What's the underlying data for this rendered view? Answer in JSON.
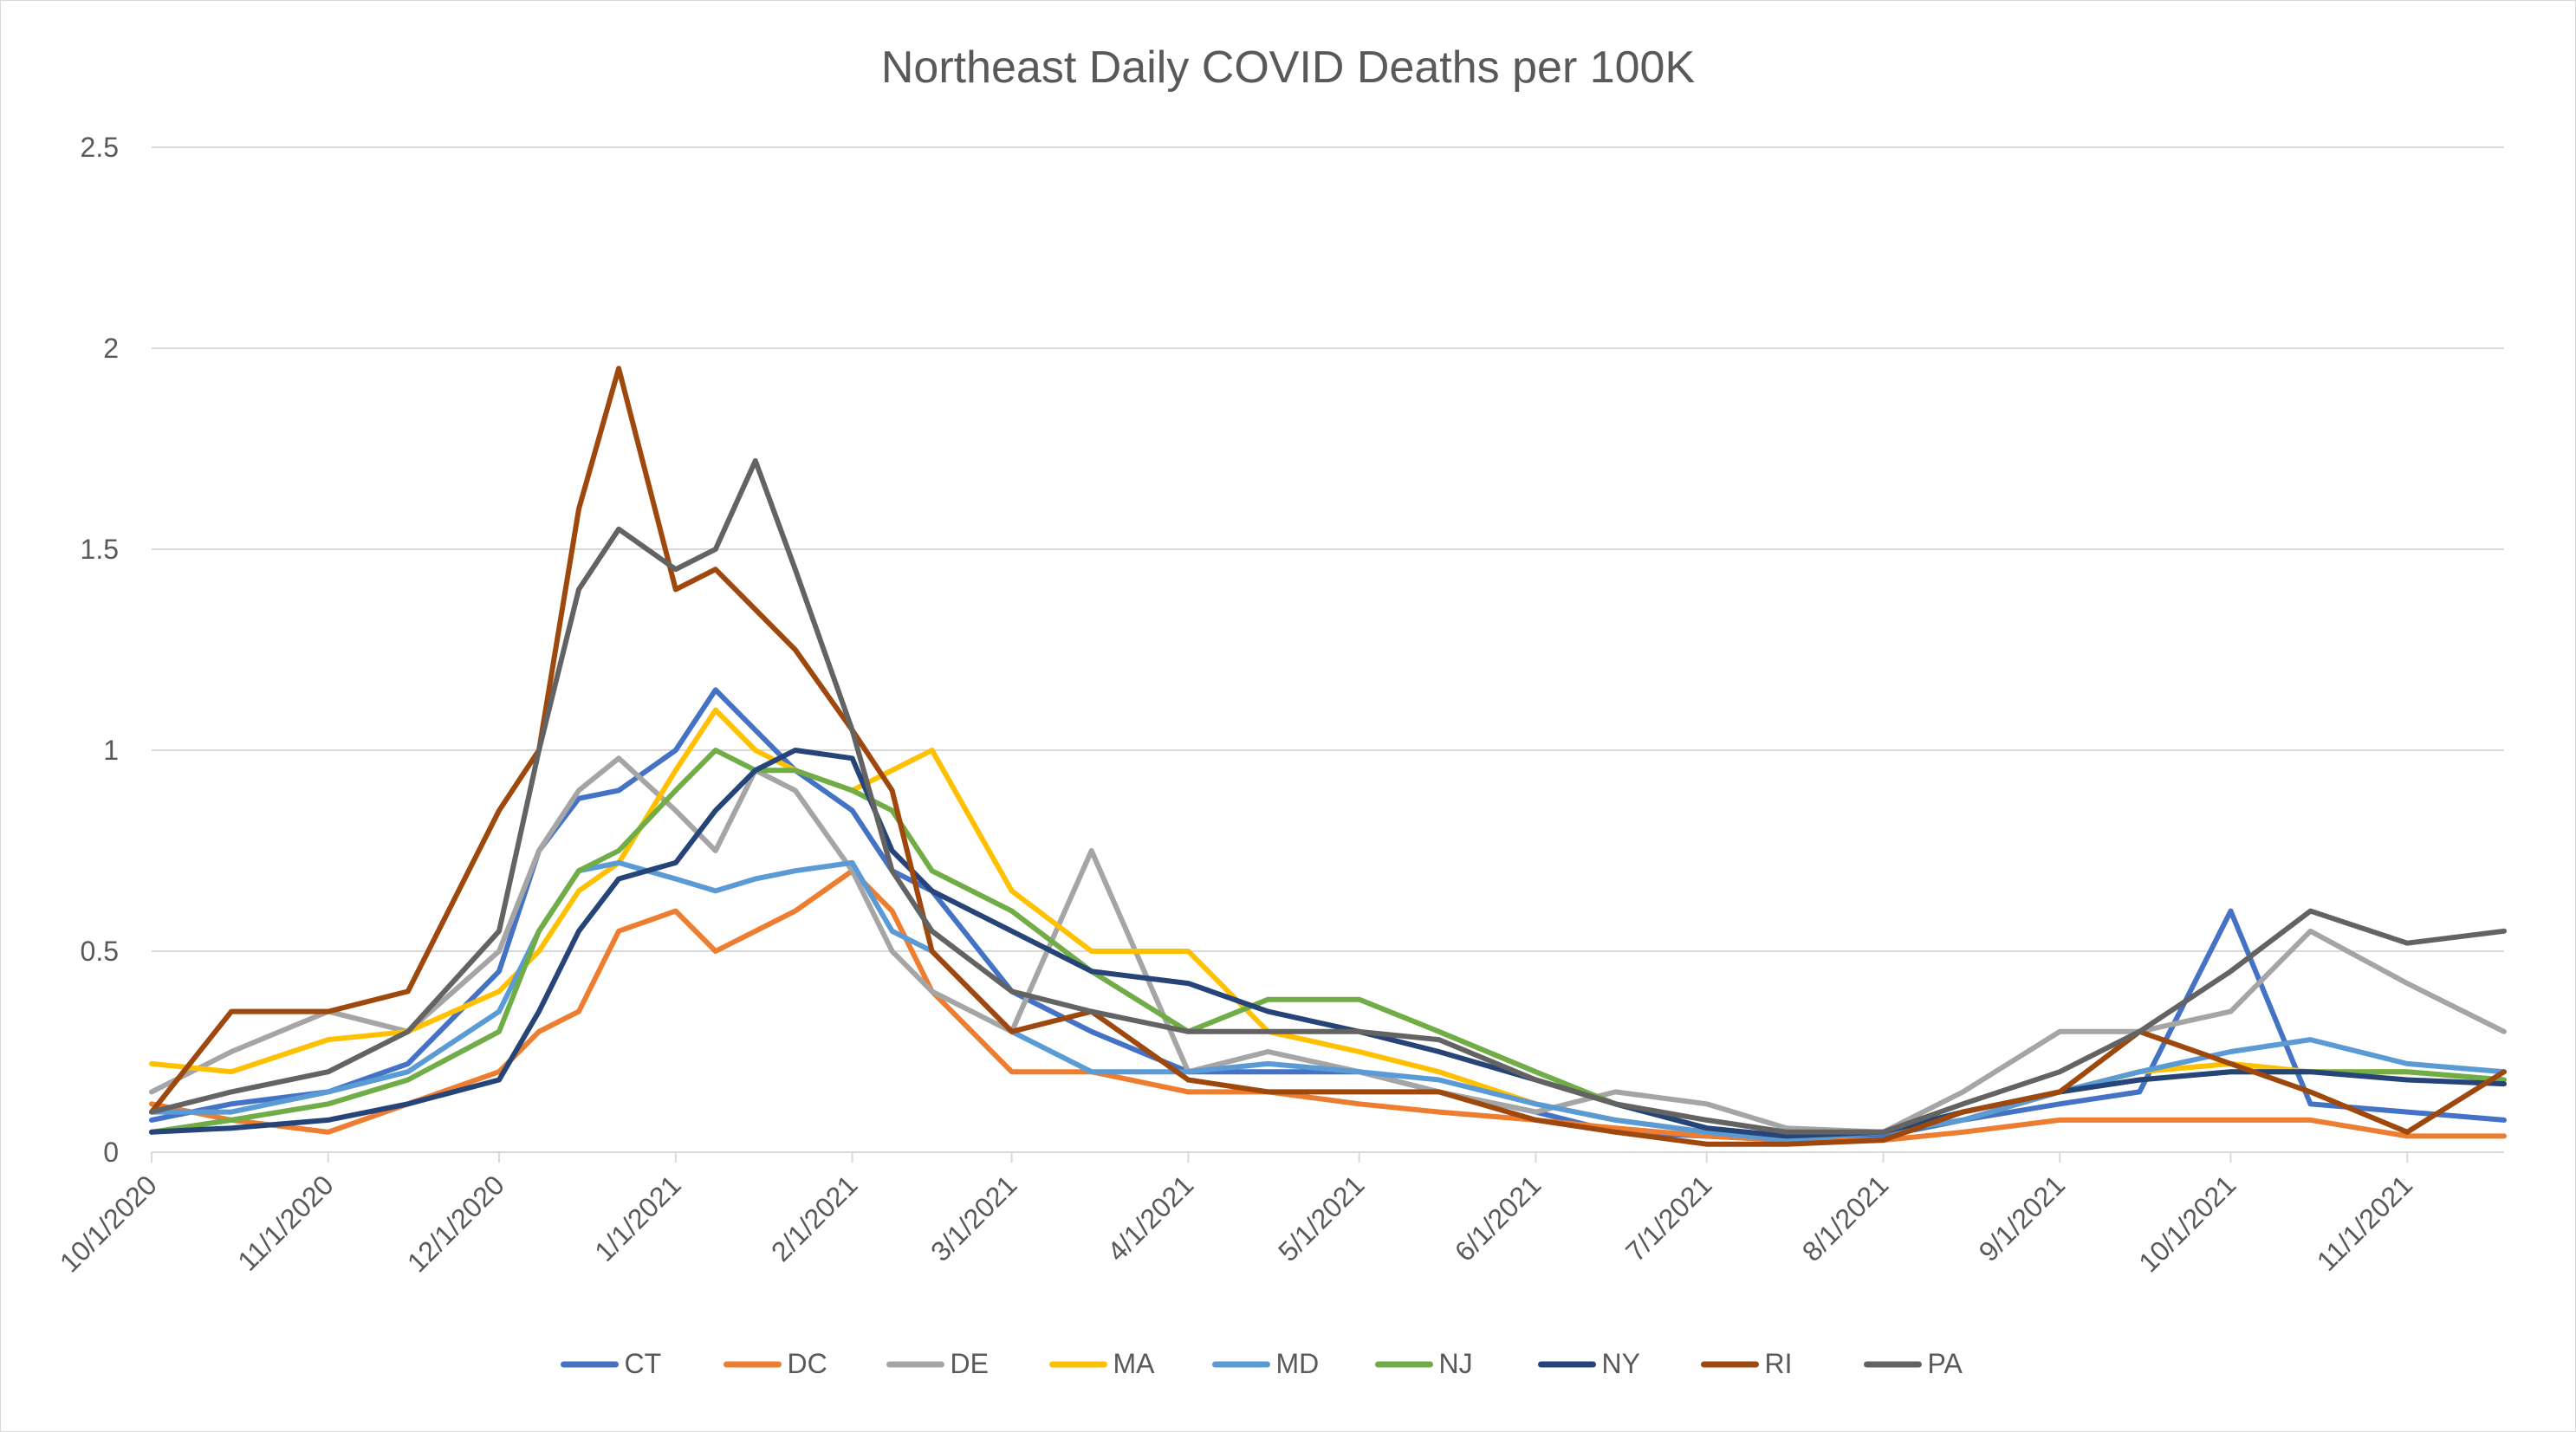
{
  "chart_data": {
    "type": "line",
    "title": "Northeast Daily COVID Deaths per 100K",
    "xlabel": "",
    "ylabel": "",
    "ylim": [
      0,
      2.5
    ],
    "yticks": [
      "0",
      "0.5",
      "1",
      "1.5",
      "2",
      "2.5"
    ],
    "xticks": [
      "10/1/2020",
      "11/1/2020",
      "12/1/2020",
      "1/1/2021",
      "2/1/2021",
      "3/1/2021",
      "4/1/2021",
      "5/1/2021",
      "6/1/2021",
      "7/1/2021",
      "8/1/2021",
      "9/1/2021",
      "10/1/2021",
      "11/1/2021"
    ],
    "xrange": [
      "10/1/2020",
      "11/18/2021"
    ],
    "grid": "horizontal",
    "legend_position": "bottom",
    "x": [
      "10/1/2020",
      "10/15/2020",
      "11/1/2020",
      "11/15/2020",
      "12/1/2020",
      "12/8/2020",
      "12/15/2020",
      "12/22/2020",
      "1/1/2021",
      "1/8/2021",
      "1/15/2021",
      "1/22/2021",
      "2/1/2021",
      "2/8/2021",
      "2/15/2021",
      "3/1/2021",
      "3/15/2021",
      "4/1/2021",
      "4/15/2021",
      "5/1/2021",
      "5/15/2021",
      "6/1/2021",
      "6/15/2021",
      "7/1/2021",
      "7/15/2021",
      "8/1/2021",
      "8/15/2021",
      "9/1/2021",
      "9/15/2021",
      "10/1/2021",
      "10/15/2021",
      "11/1/2021",
      "11/18/2021"
    ],
    "series": [
      {
        "name": "CT",
        "color": "#4472C4",
        "values": [
          0.08,
          0.12,
          0.15,
          0.22,
          0.45,
          0.75,
          0.88,
          0.9,
          1.0,
          1.15,
          1.05,
          0.95,
          0.85,
          0.7,
          0.65,
          0.4,
          0.3,
          0.2,
          0.2,
          0.2,
          0.15,
          0.1,
          0.05,
          0.04,
          0.03,
          0.04,
          0.08,
          0.12,
          0.15,
          0.6,
          0.12,
          0.1,
          0.08
        ]
      },
      {
        "name": "DC",
        "color": "#ED7D31",
        "values": [
          0.12,
          0.08,
          0.05,
          0.12,
          0.2,
          0.3,
          0.35,
          0.55,
          0.6,
          0.5,
          0.55,
          0.6,
          0.7,
          0.6,
          0.4,
          0.2,
          0.2,
          0.15,
          0.15,
          0.12,
          0.1,
          0.08,
          0.06,
          0.04,
          0.03,
          0.03,
          0.05,
          0.08,
          0.08,
          0.08,
          0.08,
          0.04,
          0.04
        ]
      },
      {
        "name": "DE",
        "color": "#A5A5A5",
        "values": [
          0.15,
          0.25,
          0.35,
          0.3,
          0.5,
          0.75,
          0.9,
          0.98,
          0.85,
          0.75,
          0.95,
          0.9,
          0.7,
          0.5,
          0.4,
          0.3,
          0.75,
          0.2,
          0.25,
          0.2,
          0.15,
          0.1,
          0.15,
          0.12,
          0.06,
          0.05,
          0.15,
          0.3,
          0.3,
          0.35,
          0.55,
          0.42,
          0.3
        ]
      },
      {
        "name": "MA",
        "color": "#FFC000",
        "values": [
          0.22,
          0.2,
          0.28,
          0.3,
          0.4,
          0.5,
          0.65,
          0.72,
          0.95,
          1.1,
          1.0,
          0.95,
          0.9,
          0.95,
          1.0,
          0.65,
          0.5,
          0.5,
          0.3,
          0.25,
          0.2,
          0.12,
          0.08,
          0.05,
          0.04,
          0.05,
          0.08,
          0.15,
          0.2,
          0.22,
          0.2,
          0.2,
          0.18
        ]
      },
      {
        "name": "MD",
        "color": "#5B9BD5",
        "values": [
          0.1,
          0.1,
          0.15,
          0.2,
          0.35,
          0.55,
          0.7,
          0.72,
          0.68,
          0.65,
          0.68,
          0.7,
          0.72,
          0.55,
          0.5,
          0.3,
          0.2,
          0.2,
          0.22,
          0.2,
          0.18,
          0.12,
          0.08,
          0.05,
          0.03,
          0.05,
          0.08,
          0.15,
          0.2,
          0.25,
          0.28,
          0.22,
          0.2
        ]
      },
      {
        "name": "NJ",
        "color": "#70AD47",
        "values": [
          0.05,
          0.08,
          0.12,
          0.18,
          0.3,
          0.55,
          0.7,
          0.75,
          0.9,
          1.0,
          0.95,
          0.95,
          0.9,
          0.85,
          0.7,
          0.6,
          0.45,
          0.3,
          0.38,
          0.38,
          0.3,
          0.2,
          0.12,
          0.06,
          0.04,
          0.05,
          0.1,
          0.15,
          0.18,
          0.2,
          0.2,
          0.2,
          0.18
        ]
      },
      {
        "name": "NY",
        "color": "#264478",
        "values": [
          0.05,
          0.06,
          0.08,
          0.12,
          0.18,
          0.35,
          0.55,
          0.68,
          0.72,
          0.85,
          0.95,
          1.0,
          0.98,
          0.75,
          0.65,
          0.55,
          0.45,
          0.42,
          0.35,
          0.3,
          0.25,
          0.18,
          0.12,
          0.06,
          0.04,
          0.05,
          0.1,
          0.15,
          0.18,
          0.2,
          0.2,
          0.18,
          0.17
        ]
      },
      {
        "name": "RI",
        "color": "#9E480E",
        "values": [
          0.1,
          0.35,
          0.35,
          0.4,
          0.85,
          1.0,
          1.6,
          1.95,
          1.4,
          1.45,
          1.35,
          1.25,
          1.05,
          0.9,
          0.5,
          0.3,
          0.35,
          0.18,
          0.15,
          0.15,
          0.15,
          0.08,
          0.05,
          0.02,
          0.02,
          0.03,
          0.1,
          0.15,
          0.3,
          0.22,
          0.15,
          0.05,
          0.2
        ]
      },
      {
        "name": "PA",
        "color": "#636363",
        "values": [
          0.1,
          0.15,
          0.2,
          0.3,
          0.55,
          1.0,
          1.4,
          1.55,
          1.45,
          1.5,
          1.72,
          1.45,
          1.05,
          0.7,
          0.55,
          0.4,
          0.35,
          0.3,
          0.3,
          0.3,
          0.28,
          0.18,
          0.12,
          0.08,
          0.05,
          0.05,
          0.12,
          0.2,
          0.3,
          0.45,
          0.6,
          0.52,
          0.55
        ]
      }
    ]
  }
}
